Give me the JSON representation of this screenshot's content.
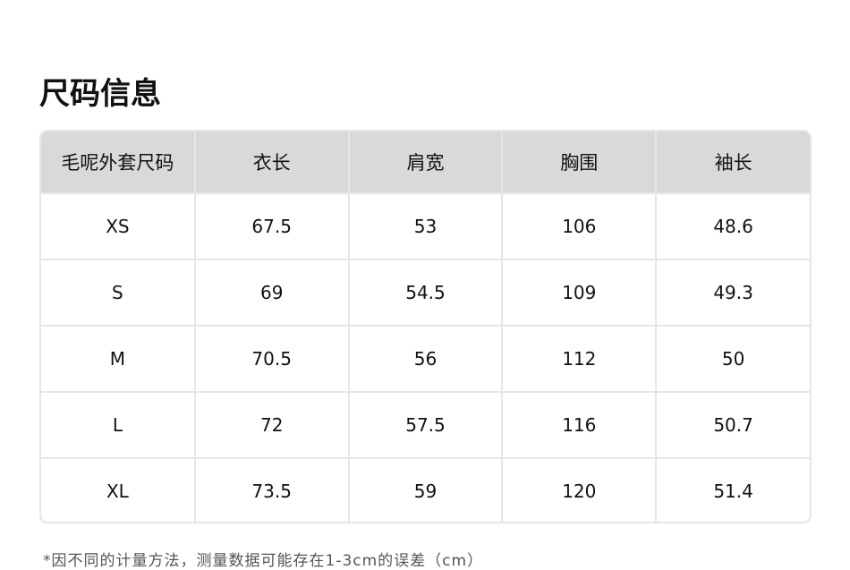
{
  "title": "尺码信息",
  "table": {
    "headers": [
      "毛呢外套尺码",
      "衣长",
      "肩宽",
      "胸围",
      "袖长"
    ],
    "rows": [
      [
        "XS",
        "67.5",
        "53",
        "106",
        "48.6"
      ],
      [
        "S",
        "69",
        "54.5",
        "109",
        "49.3"
      ],
      [
        "M",
        "70.5",
        "56",
        "112",
        "50"
      ],
      [
        "L",
        "72",
        "57.5",
        "116",
        "50.7"
      ],
      [
        "XL",
        "73.5",
        "59",
        "120",
        "51.4"
      ]
    ]
  },
  "note": "*因不同的计量方法，测量数据可能存在1-3cm的误差（cm）",
  "colors": {
    "header_bg": "#d9d9d9",
    "border": "#e6e6e6"
  }
}
